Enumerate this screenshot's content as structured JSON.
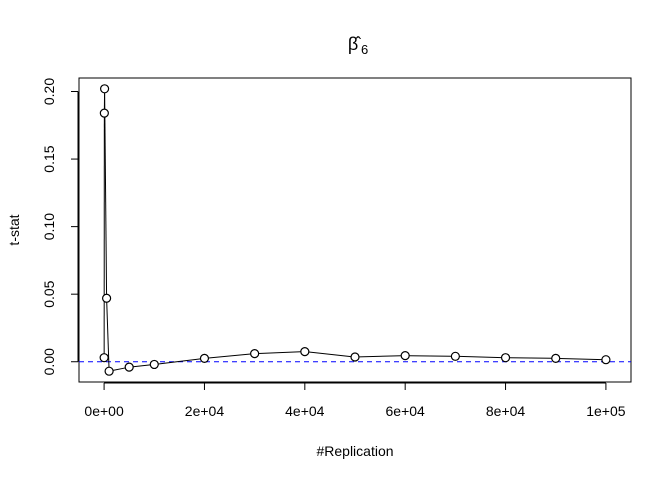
{
  "chart_data": {
    "type": "line",
    "title": "β̂",
    "title_subscript": "6",
    "xlabel": "#Replication",
    "ylabel": "t-stat",
    "xlim": [
      -5000,
      105000
    ],
    "ylim": [
      -0.015,
      0.21
    ],
    "x_ticks": [
      0,
      20000,
      40000,
      60000,
      80000,
      100000
    ],
    "x_tick_labels": [
      "0e+00",
      "2e+04",
      "4e+04",
      "6e+04",
      "8e+04",
      "1e+05"
    ],
    "y_ticks": [
      0.0,
      0.05,
      0.1,
      0.15,
      0.2
    ],
    "y_tick_labels": [
      "0.00",
      "0.05",
      "0.10",
      "0.15",
      "0.20"
    ],
    "reference_line": {
      "y": 0,
      "style": "dashed",
      "color": "#0000ff"
    },
    "series": [
      {
        "line_color": "#000000",
        "marker": "open-circle",
        "points": [
          {
            "x": 10,
            "y": 0.003
          },
          {
            "x": 50,
            "y": 0.184
          },
          {
            "x": 100,
            "y": 0.202
          },
          {
            "x": 500,
            "y": 0.047
          },
          {
            "x": 1000,
            "y": -0.007
          },
          {
            "x": 5000,
            "y": -0.004
          },
          {
            "x": 10000,
            "y": -0.002
          },
          {
            "x": 20000,
            "y": 0.0025
          },
          {
            "x": 30000,
            "y": 0.006
          },
          {
            "x": 40000,
            "y": 0.0075
          },
          {
            "x": 50000,
            "y": 0.0035
          },
          {
            "x": 60000,
            "y": 0.0045
          },
          {
            "x": 70000,
            "y": 0.004
          },
          {
            "x": 80000,
            "y": 0.003
          },
          {
            "x": 90000,
            "y": 0.0025
          },
          {
            "x": 100000,
            "y": 0.0015
          }
        ]
      }
    ],
    "grid": false,
    "legend": "none"
  }
}
